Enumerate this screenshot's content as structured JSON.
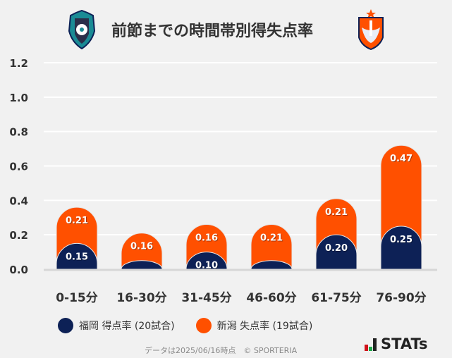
{
  "header": {
    "title": "前節までの時間帯別得失点率",
    "home_logo": "avispa-fukuoka-crest",
    "away_logo": "albirex-niigata-crest"
  },
  "chart_data": {
    "type": "bar",
    "stacked": true,
    "categories": [
      "0-15分",
      "16-30分",
      "31-45分",
      "46-60分",
      "61-75分",
      "76-90分"
    ],
    "series": [
      {
        "name": "福岡 得点率 (20試合)",
        "color": "#0d2156",
        "values": [
          0.15,
          0.05,
          0.1,
          0.05,
          0.2,
          0.25
        ],
        "labels": [
          "0.15",
          "",
          "0.10",
          "",
          "0.20",
          "0.25"
        ]
      },
      {
        "name": "新潟 失点率 (19試合)",
        "color": "#ff5000",
        "values": [
          0.21,
          0.16,
          0.16,
          0.21,
          0.21,
          0.47
        ],
        "labels": [
          "0.21",
          "0.16",
          "0.16",
          "0.21",
          "0.21",
          "0.47"
        ]
      }
    ],
    "ylim": [
      0,
      1.2
    ],
    "yticks": [
      "0.0",
      "0.2",
      "0.4",
      "0.6",
      "0.8",
      "1.0",
      "1.2"
    ],
    "grid": true,
    "legend": "bottom"
  },
  "footer": {
    "note": "データは2025/06/16時点　© SPORTERIA",
    "brand": "STATs"
  }
}
